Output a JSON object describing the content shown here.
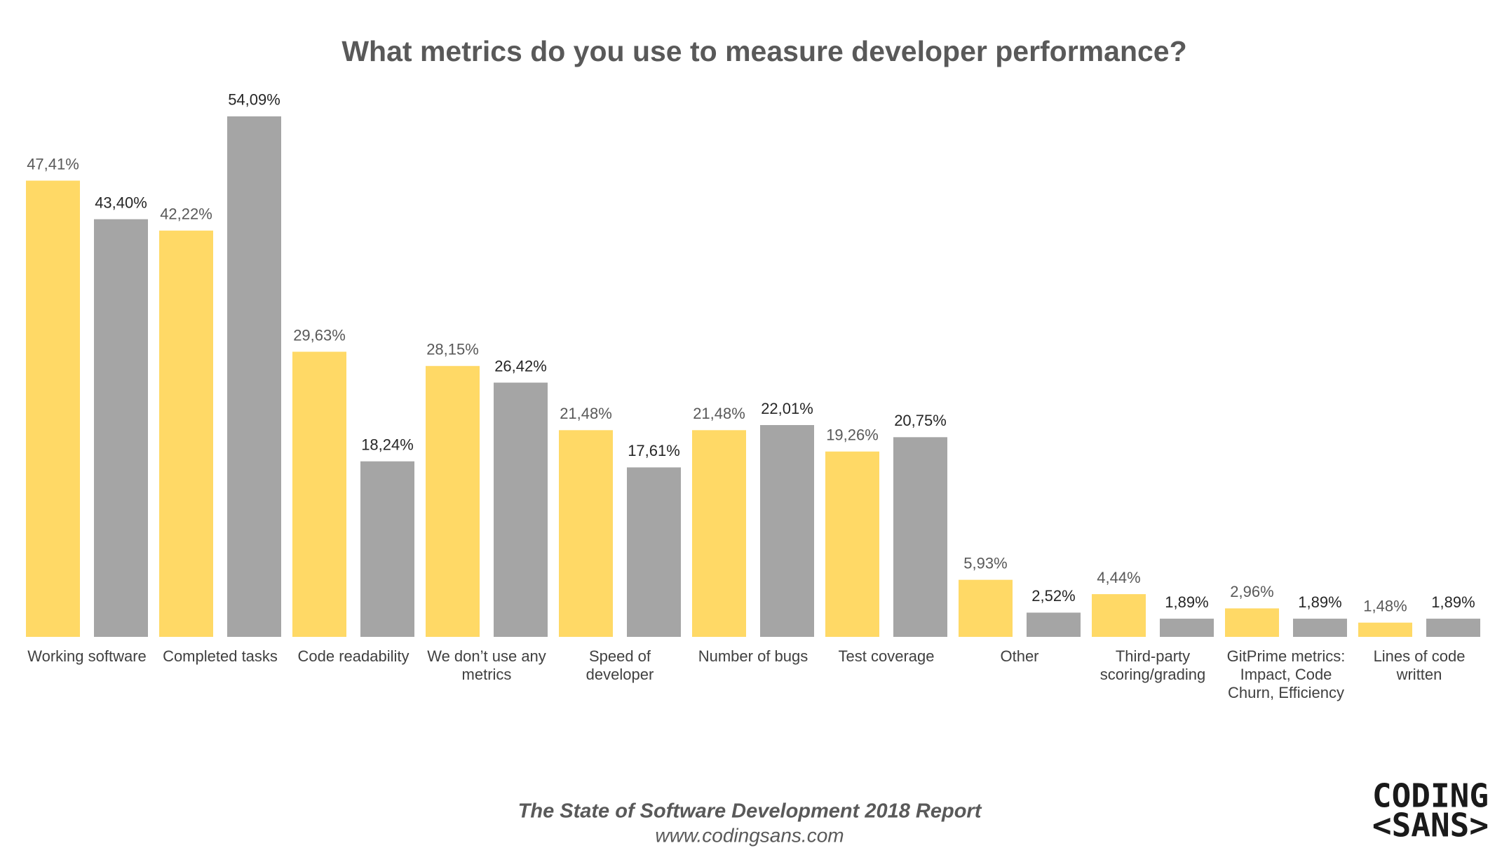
{
  "chart_data": {
    "type": "bar",
    "title": "What metrics do you use to measure developer performance?",
    "categories": [
      "Working software",
      "Completed tasks",
      "Code readability",
      "We don’t use any metrics",
      "Speed of developer",
      "Number of bugs",
      "Test coverage",
      "Other",
      "Third-party scoring/grading",
      "GitPrime metrics: Impact, Code Churn, Efficiency",
      "Lines of code written"
    ],
    "series": [
      {
        "color": "#FFD966",
        "values": [
          47.41,
          42.22,
          29.63,
          28.15,
          21.48,
          21.48,
          19.26,
          5.93,
          4.44,
          2.96,
          1.48
        ],
        "value_labels": [
          "47,41%",
          "42,22%",
          "29,63%",
          "28,15%",
          "21,48%",
          "21,48%",
          "19,26%",
          "5,93%",
          "4,44%",
          "2,96%",
          "1,48%"
        ]
      },
      {
        "color": "#A5A5A5",
        "values": [
          43.4,
          54.09,
          18.24,
          26.42,
          17.61,
          22.01,
          20.75,
          2.52,
          1.89,
          1.89,
          1.89
        ],
        "value_labels": [
          "43,40%",
          "54,09%",
          "18,24%",
          "26,42%",
          "17,61%",
          "22,01%",
          "20,75%",
          "2,52%",
          "1,89%",
          "1,89%",
          "1,89%"
        ]
      }
    ],
    "source": "The State of Software Development 2018 Report",
    "url": "www.codingsans.com",
    "logo": [
      "CODING",
      "<SANS>"
    ]
  }
}
